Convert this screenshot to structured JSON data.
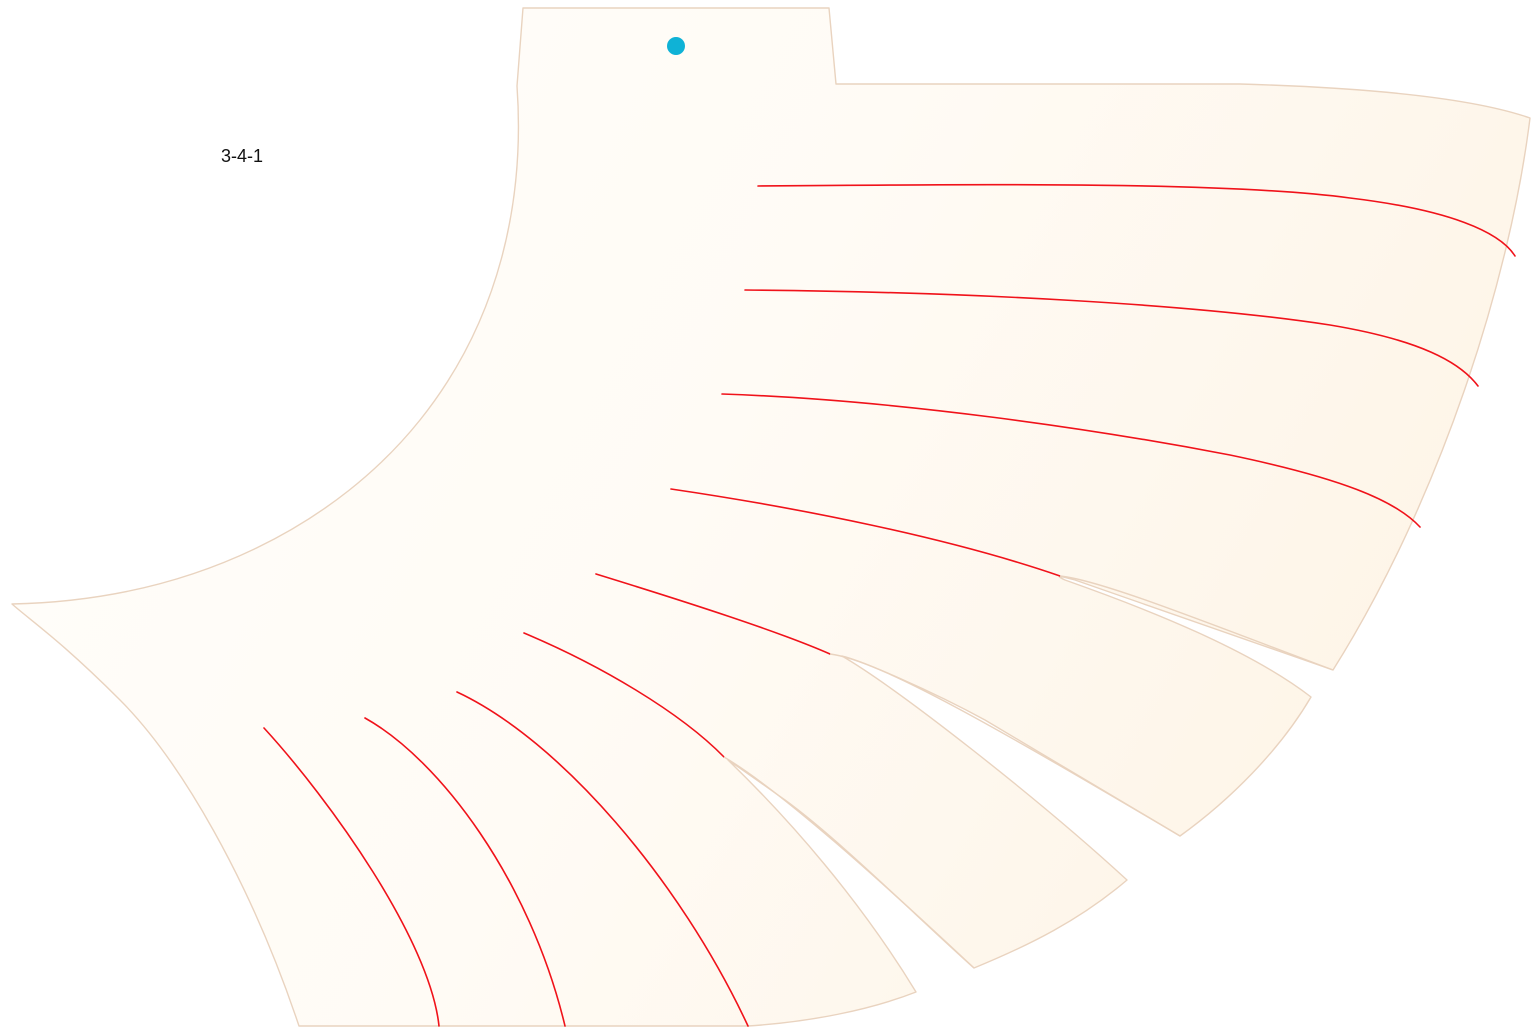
{
  "pattern": {
    "label": "3-4-1",
    "colors": {
      "background": "#ffffff",
      "piece_fill_light": "#fffefb",
      "piece_fill_warm": "#fef5e8",
      "outline": "#e9d3bf",
      "cut_line": "#f0121a",
      "marker": "#0fb2d6",
      "label_text": "#111111"
    },
    "marker_icon": "circle-marker-icon"
  }
}
